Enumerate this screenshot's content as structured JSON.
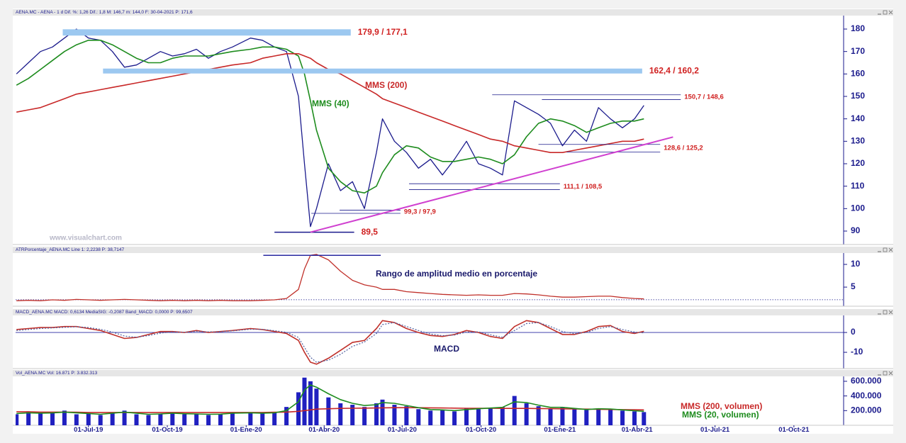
{
  "chart_data": [
    {
      "type": "line",
      "title": "AENA.MC - AENA - 1 d  Dif. %: 1,26  Dif.: 1,8  M: 146,7  m: 144,0  F: 30-04-2021  P: 171,6",
      "x": [
        "2019-04-08",
        "2019-04-22",
        "2019-05-06",
        "2019-05-20",
        "2019-06-03",
        "2019-06-17",
        "2019-07-01",
        "2019-07-15",
        "2019-07-29",
        "2019-08-12",
        "2019-08-26",
        "2019-09-09",
        "2019-09-23",
        "2019-10-07",
        "2019-10-21",
        "2019-11-04",
        "2019-11-18",
        "2019-12-02",
        "2019-12-16",
        "2020-01-06",
        "2020-01-20",
        "2020-02-03",
        "2020-02-17",
        "2020-03-02",
        "2020-03-09",
        "2020-03-16",
        "2020-03-23",
        "2020-04-06",
        "2020-04-20",
        "2020-05-04",
        "2020-05-18",
        "2020-06-01",
        "2020-06-08",
        "2020-06-22",
        "2020-07-06",
        "2020-07-20",
        "2020-08-03",
        "2020-08-17",
        "2020-08-31",
        "2020-09-14",
        "2020-09-28",
        "2020-10-12",
        "2020-10-26",
        "2020-11-09",
        "2020-11-23",
        "2020-12-07",
        "2020-12-21",
        "2021-01-04",
        "2021-01-18",
        "2021-02-01",
        "2021-02-15",
        "2021-03-01",
        "2021-03-15",
        "2021-03-29",
        "2021-04-09"
      ],
      "values": [
        160,
        165,
        170,
        172,
        176,
        180,
        176,
        175,
        170,
        163,
        164,
        167,
        170,
        168,
        169,
        171,
        167,
        170,
        172,
        176,
        175,
        172,
        170,
        150,
        120,
        92,
        100,
        120,
        108,
        112,
        100,
        125,
        140,
        130,
        125,
        118,
        122,
        115,
        122,
        130,
        120,
        118,
        115,
        148,
        145,
        142,
        138,
        128,
        135,
        130,
        145,
        140,
        136,
        140,
        146
      ],
      "color": "#1a1a8c",
      "series": [
        {
          "name": "MMS (40)",
          "color": "#1e8c1e",
          "values": [
            155,
            158,
            162,
            166,
            170,
            173,
            175,
            175,
            173,
            170,
            167,
            165,
            165,
            167,
            168,
            168,
            168,
            169,
            170,
            171,
            172,
            172,
            171,
            168,
            160,
            148,
            135,
            118,
            112,
            108,
            107,
            110,
            116,
            124,
            128,
            127,
            123,
            121,
            121,
            122,
            123,
            122,
            120,
            124,
            132,
            138,
            140,
            139,
            137,
            134,
            136,
            138,
            139,
            139,
            140
          ]
        },
        {
          "name": "MMS (200)",
          "color": "#c82828",
          "values": [
            143,
            144,
            145,
            147,
            149,
            151,
            152,
            153,
            154,
            155,
            156,
            157,
            158,
            159,
            160,
            161,
            162,
            163,
            164,
            165,
            167,
            168,
            169,
            169,
            168,
            167,
            165,
            162,
            160,
            157,
            154,
            151,
            149,
            147,
            145,
            143,
            141,
            139,
            137,
            135,
            133,
            131,
            130,
            128,
            127,
            126,
            125,
            125,
            126,
            127,
            128,
            129,
            130,
            130,
            131
          ]
        }
      ],
      "xlim": [
        "2019-04-07",
        "2021-11-28"
      ],
      "ylim": [
        84,
        186
      ],
      "yticks": [
        90,
        100,
        110,
        120,
        130,
        140,
        150,
        160,
        170,
        180
      ],
      "levels": [
        {
          "label": "179,9 / 177,1",
          "values": [
            179.9,
            177.1
          ],
          "style": "band",
          "from": "2019-06-01",
          "to": "2020-05-02"
        },
        {
          "label": "162,4 / 160,2",
          "values": [
            162.4,
            160.2
          ],
          "style": "band",
          "from": "2019-07-18",
          "to": "2021-04-07"
        },
        {
          "label": "150,7 / 148,6",
          "values": [
            150.7,
            148.6
          ],
          "style": "line",
          "from": [
            "2020-10-14",
            "2020-12-11"
          ],
          "to": "2021-05-22"
        },
        {
          "label": "128,6 / 125,2",
          "values": [
            128.6,
            125.2
          ],
          "style": "line",
          "from": [
            "2020-12-07",
            "2021-01-09"
          ],
          "to": "2021-04-28"
        },
        {
          "label": "111,1 / 108,5",
          "values": [
            111.1,
            108.5
          ],
          "style": "line",
          "from": [
            "2020-07-09",
            "2020-07-09"
          ],
          "to": "2021-01-01"
        },
        {
          "label": "99,3 / 97,9",
          "values": [
            99.3,
            97.9
          ],
          "style": "line",
          "from": [
            "2020-04-19",
            "2020-03-17"
          ],
          "to": "2020-06-29"
        },
        {
          "label": "89,5",
          "values": [
            89.5
          ],
          "style": "line",
          "from": [
            "2020-02-03"
          ],
          "to": "2020-05-06"
        }
      ],
      "trendline": {
        "x": [
          "2020-03-16",
          "2021-05-13"
        ],
        "values": [
          89.5,
          131.9
        ],
        "color": "#d040d0"
      },
      "watermark": "www.visualchart.com"
    },
    {
      "type": "line",
      "title": "ATRPorcentaje_AENA.MC  Line 1: 2,2238  P: 38,7147",
      "x": [
        "2019-04-08",
        "2019-04-22",
        "2019-05-06",
        "2019-05-20",
        "2019-06-03",
        "2019-06-17",
        "2019-07-01",
        "2019-07-15",
        "2019-07-29",
        "2019-08-12",
        "2019-08-26",
        "2019-09-09",
        "2019-09-23",
        "2019-10-07",
        "2019-10-21",
        "2019-11-04",
        "2019-11-18",
        "2019-12-02",
        "2019-12-16",
        "2020-01-06",
        "2020-01-20",
        "2020-02-03",
        "2020-02-17",
        "2020-03-02",
        "2020-03-09",
        "2020-03-16",
        "2020-03-23",
        "2020-04-06",
        "2020-04-20",
        "2020-05-04",
        "2020-05-18",
        "2020-06-01",
        "2020-06-08",
        "2020-06-22",
        "2020-07-06",
        "2020-07-20",
        "2020-08-03",
        "2020-08-17",
        "2020-08-31",
        "2020-09-14",
        "2020-09-28",
        "2020-10-12",
        "2020-10-26",
        "2020-11-09",
        "2020-11-23",
        "2020-12-07",
        "2020-12-21",
        "2021-01-04",
        "2021-01-18",
        "2021-02-01",
        "2021-02-15",
        "2021-03-01",
        "2021-03-15",
        "2021-03-29",
        "2021-04-09"
      ],
      "values": [
        2.0,
        2.1,
        2.0,
        2.2,
        2.1,
        2.3,
        2.2,
        2.1,
        2.2,
        2.3,
        2.2,
        2.1,
        2.0,
        2.1,
        2.0,
        2.1,
        2.0,
        2.1,
        2.0,
        2.0,
        2.1,
        2.2,
        2.5,
        4.5,
        9.0,
        12.0,
        12.2,
        11.0,
        8.5,
        6.5,
        5.5,
        5.0,
        4.5,
        4.5,
        4.0,
        3.8,
        3.6,
        3.4,
        3.3,
        3.2,
        3.3,
        3.2,
        3.2,
        3.6,
        3.5,
        3.3,
        3.0,
        2.8,
        2.8,
        2.9,
        3.0,
        3.0,
        2.7,
        2.5,
        2.4
      ],
      "color": "#c0302a",
      "ref_line": 2.2238,
      "max_line": {
        "value": 12,
        "from": "2020-01-21",
        "to": "2020-06-06",
        "color": "#2a2aa0"
      },
      "annotation": "Rango de amplitud medio en porcentaje",
      "xlim": [
        "2019-04-07",
        "2021-11-28"
      ],
      "ylim": [
        0.8,
        12.5
      ],
      "yticks": [
        5,
        10
      ]
    },
    {
      "type": "line",
      "title": "MACD_AENA.MC  MACD: 0,6134  MediaSIG: -0,2087  Band_MACD: 0,0000  P: 99,6507",
      "x": [
        "2019-04-08",
        "2019-04-22",
        "2019-05-06",
        "2019-05-20",
        "2019-06-03",
        "2019-06-17",
        "2019-07-01",
        "2019-07-15",
        "2019-07-29",
        "2019-08-12",
        "2019-08-26",
        "2019-09-09",
        "2019-09-23",
        "2019-10-07",
        "2019-10-21",
        "2019-11-04",
        "2019-11-18",
        "2019-12-02",
        "2019-12-16",
        "2020-01-06",
        "2020-01-20",
        "2020-02-03",
        "2020-02-17",
        "2020-03-02",
        "2020-03-09",
        "2020-03-16",
        "2020-03-23",
        "2020-04-06",
        "2020-04-20",
        "2020-05-04",
        "2020-05-18",
        "2020-06-01",
        "2020-06-08",
        "2020-06-22",
        "2020-07-06",
        "2020-07-20",
        "2020-08-03",
        "2020-08-17",
        "2020-08-31",
        "2020-09-14",
        "2020-09-28",
        "2020-10-12",
        "2020-10-26",
        "2020-11-09",
        "2020-11-23",
        "2020-12-07",
        "2020-12-21",
        "2021-01-04",
        "2021-01-18",
        "2021-02-01",
        "2021-02-15",
        "2021-03-01",
        "2021-03-15",
        "2021-03-29",
        "2021-04-09"
      ],
      "series": [
        {
          "color": "#c0302a",
          "values": [
            1.5,
            2.0,
            2.5,
            2.5,
            3.0,
            3.0,
            2.0,
            1.0,
            -1.0,
            -3.0,
            -2.5,
            -1.0,
            0.5,
            0.5,
            0.0,
            1.0,
            0.0,
            0.5,
            1.0,
            2.0,
            1.5,
            0.5,
            -0.5,
            -4.0,
            -10.0,
            -15.0,
            -16.0,
            -13.0,
            -9.0,
            -5.0,
            -4.0,
            2.0,
            6.0,
            5.0,
            2.0,
            0.0,
            -1.5,
            -2.0,
            -1.0,
            1.0,
            0.0,
            -2.0,
            -3.0,
            3.0,
            6.0,
            5.0,
            2.0,
            -1.0,
            -1.0,
            0.5,
            3.0,
            3.5,
            0.5,
            -0.5,
            0.6
          ]
        },
        {
          "color": "#5060a0",
          "values": [
            1.0,
            1.5,
            2.0,
            2.3,
            2.6,
            2.9,
            2.5,
            1.6,
            0.2,
            -1.8,
            -2.4,
            -1.6,
            -0.3,
            0.3,
            0.1,
            0.6,
            0.3,
            0.4,
            0.8,
            1.6,
            1.6,
            0.9,
            0.1,
            -2.5,
            -7.5,
            -12.5,
            -15.0,
            -14.0,
            -11.0,
            -7.0,
            -4.8,
            -0.5,
            4.0,
            5.0,
            3.0,
            1.0,
            -0.8,
            -1.6,
            -1.3,
            0.2,
            0.3,
            -1.2,
            -2.4,
            1.0,
            4.5,
            5.0,
            3.0,
            0.5,
            -0.6,
            0.0,
            2.0,
            3.0,
            1.5,
            0.2,
            -0.2
          ]
        }
      ],
      "annotation": "MACD",
      "xlim": [
        "2019-04-07",
        "2021-11-28"
      ],
      "ylim": [
        -18.2,
        8.6
      ],
      "yticks": [
        0,
        -10
      ]
    },
    {
      "type": "bar",
      "title": "Vol_AENA.MC  Vol: 16.871  P: 3.832.313",
      "x": [
        "2019-04-08",
        "2019-04-22",
        "2019-05-06",
        "2019-05-20",
        "2019-06-03",
        "2019-06-17",
        "2019-07-01",
        "2019-07-15",
        "2019-07-29",
        "2019-08-12",
        "2019-08-26",
        "2019-09-09",
        "2019-09-23",
        "2019-10-07",
        "2019-10-21",
        "2019-11-04",
        "2019-11-18",
        "2019-12-02",
        "2019-12-16",
        "2020-01-06",
        "2020-01-20",
        "2020-02-03",
        "2020-02-17",
        "2020-03-02",
        "2020-03-09",
        "2020-03-16",
        "2020-03-23",
        "2020-04-06",
        "2020-04-20",
        "2020-05-04",
        "2020-05-18",
        "2020-06-01",
        "2020-06-08",
        "2020-06-22",
        "2020-07-06",
        "2020-07-20",
        "2020-08-03",
        "2020-08-17",
        "2020-08-31",
        "2020-09-14",
        "2020-09-28",
        "2020-10-12",
        "2020-10-26",
        "2020-11-09",
        "2020-11-23",
        "2020-12-07",
        "2020-12-21",
        "2021-01-04",
        "2021-01-18",
        "2021-02-01",
        "2021-02-15",
        "2021-03-01",
        "2021-03-15",
        "2021-03-29",
        "2021-04-09"
      ],
      "values": [
        150000,
        180000,
        160000,
        170000,
        200000,
        150000,
        160000,
        140000,
        170000,
        200000,
        150000,
        140000,
        160000,
        170000,
        150000,
        160000,
        140000,
        150000,
        180000,
        170000,
        160000,
        180000,
        250000,
        450000,
        650000,
        600000,
        500000,
        380000,
        300000,
        280000,
        250000,
        300000,
        350000,
        280000,
        260000,
        220000,
        200000,
        210000,
        190000,
        230000,
        220000,
        240000,
        250000,
        400000,
        300000,
        260000,
        230000,
        250000,
        220000,
        210000,
        230000,
        220000,
        200000,
        190000,
        180000
      ],
      "color": "#2020c0",
      "series": [
        {
          "name": "MMS (200, volumen)",
          "color": "#c82828",
          "values": [
            185000,
            185000,
            180000,
            180000,
            180000,
            178000,
            175000,
            175000,
            175000,
            175000,
            175000,
            175000,
            175000,
            175000,
            175000,
            175000,
            175000,
            175000,
            175000,
            175000,
            175000,
            178000,
            180000,
            190000,
            200000,
            210000,
            220000,
            225000,
            230000,
            232000,
            234000,
            236000,
            238000,
            240000,
            240000,
            240000,
            238000,
            236000,
            234000,
            232000,
            232000,
            232000,
            230000,
            230000,
            230000,
            228000,
            226000,
            224000,
            222000,
            220000,
            218000,
            216000,
            214000,
            212000,
            210000
          ]
        },
        {
          "name": "MMS (20, volumen)",
          "color": "#1e8c1e",
          "values": [
            160000,
            170000,
            165000,
            168000,
            180000,
            170000,
            160000,
            150000,
            165000,
            180000,
            165000,
            150000,
            155000,
            165000,
            158000,
            155000,
            150000,
            152000,
            165000,
            170000,
            165000,
            170000,
            200000,
            320000,
            480000,
            550000,
            520000,
            430000,
            350000,
            300000,
            270000,
            280000,
            310000,
            300000,
            270000,
            240000,
            215000,
            210000,
            200000,
            215000,
            225000,
            235000,
            245000,
            320000,
            310000,
            275000,
            245000,
            245000,
            230000,
            215000,
            225000,
            222000,
            210000,
            198000,
            190000
          ]
        }
      ],
      "xlim": [
        "2019-04-07",
        "2021-11-28"
      ],
      "ylim": [
        0,
        667000
      ],
      "yticks": [
        {
          "value": 200000,
          "label": "200.000"
        },
        {
          "value": 400000,
          "label": "400.000"
        },
        {
          "value": 600000,
          "label": "600.000"
        }
      ],
      "xticks": [
        {
          "value": "2019-07-01",
          "label": "01-Jul-19"
        },
        {
          "value": "2019-10-01",
          "label": "01-Oct-19"
        },
        {
          "value": "2020-01-01",
          "label": "01-Ene-20"
        },
        {
          "value": "2020-04-01",
          "label": "01-Abr-20"
        },
        {
          "value": "2020-07-01",
          "label": "01-Jul-20"
        },
        {
          "value": "2020-10-01",
          "label": "01-Oct-20"
        },
        {
          "value": "2021-01-01",
          "label": "01-Ene-21"
        },
        {
          "value": "2021-04-01",
          "label": "01-Abr-21"
        },
        {
          "value": "2021-07-01",
          "label": "01-Jul-21"
        },
        {
          "value": "2021-10-01",
          "label": "01-Oct-21"
        }
      ]
    }
  ]
}
